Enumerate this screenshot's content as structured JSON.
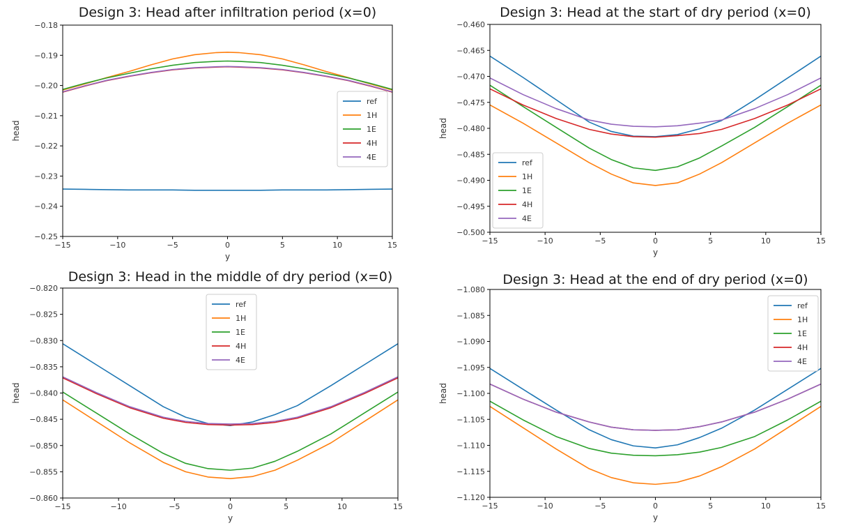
{
  "chart_data": [
    {
      "type": "line",
      "title": "Design 3: Head after infiltration period (x=0)",
      "xlabel": "y",
      "ylabel": "head",
      "xlim": [
        -15,
        15
      ],
      "ylim": [
        -0.25,
        -0.18
      ],
      "xticks": [
        -15,
        -10,
        -5,
        0,
        5,
        10,
        15
      ],
      "xtick_labels": [
        "−15",
        "−10",
        "−5",
        "0",
        "5",
        "10",
        "15"
      ],
      "yticks": [
        -0.25,
        -0.24,
        -0.23,
        -0.22,
        -0.21,
        -0.2,
        -0.19,
        -0.18
      ],
      "ytick_labels": [
        "−0.25",
        "−0.24",
        "−0.23",
        "−0.22",
        "−0.21",
        "−0.20",
        "−0.19",
        "−0.18"
      ],
      "legend_position": "center-right",
      "x": [
        -15,
        -13,
        -11,
        -9,
        -7,
        -5,
        -3,
        -1,
        0,
        1,
        3,
        5,
        7,
        9,
        11,
        13,
        15
      ],
      "series": [
        {
          "name": "ref",
          "color": "#1f77b4",
          "values": [
            -0.2343,
            -0.2344,
            -0.2345,
            -0.2346,
            -0.2346,
            -0.2346,
            -0.2347,
            -0.2347,
            -0.2347,
            -0.2347,
            -0.2347,
            -0.2346,
            -0.2346,
            -0.2346,
            -0.2345,
            -0.2344,
            -0.2343
          ]
        },
        {
          "name": "1H",
          "color": "#ff7f0e",
          "values": [
            -0.2015,
            -0.1995,
            -0.1974,
            -0.1954,
            -0.1932,
            -0.1912,
            -0.1898,
            -0.1891,
            -0.189,
            -0.1891,
            -0.1898,
            -0.1912,
            -0.1932,
            -0.1954,
            -0.1974,
            -0.1995,
            -0.2015
          ]
        },
        {
          "name": "1E",
          "color": "#2ca02c",
          "values": [
            -0.2013,
            -0.1993,
            -0.1975,
            -0.196,
            -0.1945,
            -0.1933,
            -0.1924,
            -0.192,
            -0.1919,
            -0.192,
            -0.1924,
            -0.1933,
            -0.1945,
            -0.196,
            -0.1975,
            -0.1993,
            -0.2013
          ]
        },
        {
          "name": "4H",
          "color": "#d62728",
          "values": [
            -0.2022,
            -0.2002,
            -0.1984,
            -0.197,
            -0.1958,
            -0.1948,
            -0.1942,
            -0.1939,
            -0.1938,
            -0.1939,
            -0.1942,
            -0.1948,
            -0.1958,
            -0.197,
            -0.1984,
            -0.2002,
            -0.2022
          ]
        },
        {
          "name": "4E",
          "color": "#9467bd",
          "values": [
            -0.2021,
            -0.2001,
            -0.1983,
            -0.1969,
            -0.1957,
            -0.1947,
            -0.1941,
            -0.1938,
            -0.1937,
            -0.1938,
            -0.1941,
            -0.1947,
            -0.1957,
            -0.1969,
            -0.1983,
            -0.2001,
            -0.2021
          ]
        }
      ]
    },
    {
      "type": "line",
      "title": "Design 3: Head at the start of dry period (x=0)",
      "xlabel": "y",
      "ylabel": "head",
      "xlim": [
        -15,
        15
      ],
      "ylim": [
        -0.5,
        -0.46
      ],
      "xticks": [
        -15,
        -10,
        -5,
        0,
        5,
        10,
        15
      ],
      "xtick_labels": [
        "−15",
        "−10",
        "−5",
        "0",
        "5",
        "10",
        "15"
      ],
      "yticks": [
        -0.5,
        -0.495,
        -0.49,
        -0.485,
        -0.48,
        -0.475,
        -0.47,
        -0.465,
        -0.46
      ],
      "ytick_labels": [
        "−0.500",
        "−0.495",
        "−0.490",
        "−0.485",
        "−0.480",
        "−0.475",
        "−0.470",
        "−0.465",
        "−0.460"
      ],
      "legend_position": "lower-left",
      "x": [
        -15,
        -12,
        -9,
        -6,
        -4,
        -2,
        0,
        2,
        4,
        6,
        9,
        12,
        15
      ],
      "series": [
        {
          "name": "ref",
          "color": "#1f77b4",
          "values": [
            -0.4661,
            -0.4702,
            -0.4745,
            -0.4788,
            -0.4806,
            -0.4815,
            -0.4816,
            -0.4812,
            -0.4801,
            -0.4785,
            -0.4745,
            -0.4703,
            -0.4661
          ]
        },
        {
          "name": "1H",
          "color": "#ff7f0e",
          "values": [
            -0.4755,
            -0.479,
            -0.4828,
            -0.4866,
            -0.4888,
            -0.4905,
            -0.491,
            -0.4905,
            -0.4888,
            -0.4866,
            -0.4828,
            -0.479,
            -0.4755
          ]
        },
        {
          "name": "1E",
          "color": "#2ca02c",
          "values": [
            -0.4717,
            -0.4758,
            -0.4798,
            -0.4838,
            -0.486,
            -0.4876,
            -0.4881,
            -0.4874,
            -0.4857,
            -0.4834,
            -0.4798,
            -0.4758,
            -0.4717
          ]
        },
        {
          "name": "4H",
          "color": "#d62728",
          "values": [
            -0.4724,
            -0.4755,
            -0.4781,
            -0.4802,
            -0.4811,
            -0.4816,
            -0.4817,
            -0.4814,
            -0.481,
            -0.4802,
            -0.4781,
            -0.4755,
            -0.4724
          ]
        },
        {
          "name": "4E",
          "color": "#9467bd",
          "values": [
            -0.4703,
            -0.4735,
            -0.4762,
            -0.4784,
            -0.4792,
            -0.4796,
            -0.4797,
            -0.4795,
            -0.479,
            -0.4784,
            -0.4762,
            -0.4735,
            -0.4703
          ]
        }
      ]
    },
    {
      "type": "line",
      "title": "Design 3: Head in the middle of dry period (x=0)",
      "xlabel": "y",
      "ylabel": "head",
      "xlim": [
        -15,
        15
      ],
      "ylim": [
        -0.86,
        -0.82
      ],
      "xticks": [
        -15,
        -10,
        -5,
        0,
        5,
        10,
        15
      ],
      "xtick_labels": [
        "−15",
        "−10",
        "−5",
        "0",
        "5",
        "10",
        "15"
      ],
      "yticks": [
        -0.86,
        -0.855,
        -0.85,
        -0.845,
        -0.84,
        -0.835,
        -0.83,
        -0.825,
        -0.82
      ],
      "ytick_labels": [
        "−0.860",
        "−0.855",
        "−0.850",
        "−0.845",
        "−0.840",
        "−0.835",
        "−0.830",
        "−0.825",
        "−0.820"
      ],
      "legend_position": "top-center",
      "x": [
        -15,
        -12,
        -9,
        -6,
        -4,
        -2,
        0,
        2,
        4,
        6,
        9,
        12,
        15
      ],
      "series": [
        {
          "name": "ref",
          "color": "#1f77b4",
          "values": [
            -0.8306,
            -0.8346,
            -0.8386,
            -0.8426,
            -0.8446,
            -0.8458,
            -0.8462,
            -0.8455,
            -0.8441,
            -0.8424,
            -0.8386,
            -0.8346,
            -0.8306
          ]
        },
        {
          "name": "1H",
          "color": "#ff7f0e",
          "values": [
            -0.8413,
            -0.8454,
            -0.8495,
            -0.8532,
            -0.855,
            -0.856,
            -0.8563,
            -0.8559,
            -0.8547,
            -0.8528,
            -0.8495,
            -0.8454,
            -0.8413
          ]
        },
        {
          "name": "1E",
          "color": "#2ca02c",
          "values": [
            -0.8398,
            -0.8438,
            -0.8478,
            -0.8515,
            -0.8534,
            -0.8544,
            -0.8547,
            -0.8543,
            -0.853,
            -0.8511,
            -0.8478,
            -0.8438,
            -0.8398
          ]
        },
        {
          "name": "4H",
          "color": "#d62728",
          "values": [
            -0.8371,
            -0.8401,
            -0.8428,
            -0.8448,
            -0.8456,
            -0.846,
            -0.8461,
            -0.846,
            -0.8456,
            -0.8448,
            -0.8428,
            -0.8401,
            -0.8371
          ]
        },
        {
          "name": "4E",
          "color": "#9467bd",
          "values": [
            -0.8369,
            -0.8399,
            -0.8426,
            -0.8446,
            -0.8454,
            -0.8458,
            -0.8459,
            -0.8458,
            -0.8454,
            -0.8446,
            -0.8426,
            -0.8399,
            -0.8369
          ]
        }
      ]
    },
    {
      "type": "line",
      "title": "Design 3: Head at the end of dry period (x=0)",
      "xlabel": "y",
      "ylabel": "head",
      "xlim": [
        -15,
        15
      ],
      "ylim": [
        -1.12,
        -1.08
      ],
      "xticks": [
        -15,
        -10,
        -5,
        0,
        5,
        10,
        15
      ],
      "xtick_labels": [
        "−15",
        "−10",
        "−5",
        "0",
        "5",
        "10",
        "15"
      ],
      "yticks": [
        -1.12,
        -1.115,
        -1.11,
        -1.105,
        -1.1,
        -1.095,
        -1.09,
        -1.085,
        -1.08
      ],
      "ytick_labels": [
        "−1.120",
        "−1.115",
        "−1.110",
        "−1.105",
        "−1.100",
        "−1.095",
        "−1.090",
        "−1.085",
        "−1.080"
      ],
      "legend_position": "top-right",
      "x": [
        -15,
        -12,
        -9,
        -6,
        -4,
        -2,
        0,
        2,
        4,
        6,
        9,
        12,
        15
      ],
      "series": [
        {
          "name": "ref",
          "color": "#1f77b4",
          "values": [
            -1.0952,
            -1.0992,
            -1.1032,
            -1.107,
            -1.1089,
            -1.1101,
            -1.1105,
            -1.1099,
            -1.1085,
            -1.1067,
            -1.1032,
            -1.0992,
            -1.0952
          ]
        },
        {
          "name": "1H",
          "color": "#ff7f0e",
          "values": [
            -1.1025,
            -1.1066,
            -1.1107,
            -1.1145,
            -1.1162,
            -1.1172,
            -1.1175,
            -1.1171,
            -1.1159,
            -1.1141,
            -1.1107,
            -1.1066,
            -1.1025
          ]
        },
        {
          "name": "1E",
          "color": "#2ca02c",
          "values": [
            -1.1015,
            -1.1051,
            -1.1083,
            -1.1106,
            -1.1115,
            -1.1119,
            -1.112,
            -1.1118,
            -1.1113,
            -1.1104,
            -1.1083,
            -1.1051,
            -1.1015
          ]
        },
        {
          "name": "4H",
          "color": "#d62728",
          "values": [
            -1.0982,
            -1.1011,
            -1.1036,
            -1.1055,
            -1.1065,
            -1.107,
            -1.1071,
            -1.107,
            -1.1064,
            -1.1055,
            -1.1036,
            -1.1011,
            -1.0982
          ]
        },
        {
          "name": "4E",
          "color": "#9467bd",
          "values": [
            -1.0982,
            -1.1011,
            -1.1036,
            -1.1055,
            -1.1065,
            -1.107,
            -1.1071,
            -1.107,
            -1.1064,
            -1.1055,
            -1.1036,
            -1.1011,
            -1.0982
          ]
        }
      ]
    }
  ]
}
